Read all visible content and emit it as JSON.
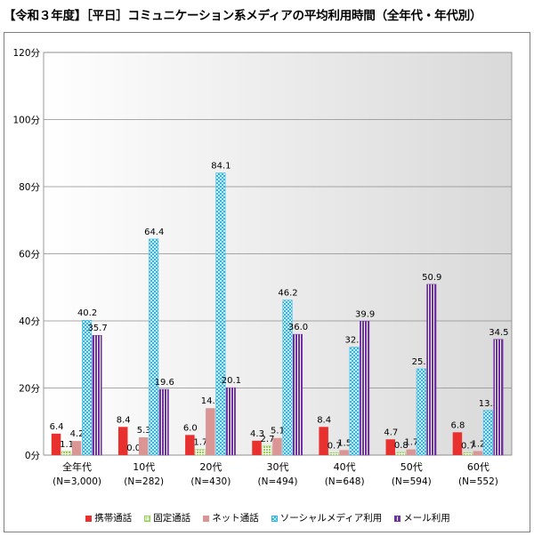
{
  "title": "【令和３年度】［平日］コミュニケーション系メディアの平均利用時間（全年代・年代別）",
  "chart_data": {
    "type": "bar",
    "title": "【令和３年度】［平日］コミュニケーション系メディアの平均利用時間（全年代・年代別）",
    "categories": [
      {
        "name": "全年代",
        "n": "(N=3,000)"
      },
      {
        "name": "10代",
        "n": "(N=282)"
      },
      {
        "name": "20代",
        "n": "(N=430)"
      },
      {
        "name": "30代",
        "n": "(N=494)"
      },
      {
        "name": "40代",
        "n": "(N=648)"
      },
      {
        "name": "50代",
        "n": "(N=594)"
      },
      {
        "name": "60代",
        "n": "(N=552)"
      }
    ],
    "series": [
      {
        "name": "携帯通話",
        "color": "#e8302f",
        "pattern": "solid",
        "values": [
          6.4,
          8.4,
          6.0,
          4.3,
          8.4,
          4.7,
          6.8
        ],
        "labels": [
          "6.4",
          "8.4",
          "6.0",
          "4.3",
          "8.4",
          "4.7",
          "6.8"
        ]
      },
      {
        "name": "固定通話",
        "color": "#92d050",
        "pattern": "dots",
        "values": [
          1.1,
          0.0,
          1.7,
          2.7,
          0.7,
          0.8,
          0.7
        ],
        "labels": [
          "1.1",
          "0.0",
          "1.7",
          "2.7",
          "0.7",
          "0.8",
          "0.7"
        ]
      },
      {
        "name": "ネット通話",
        "color": "#d99694",
        "pattern": "solid",
        "values": [
          4.2,
          5.3,
          14.0,
          5.1,
          1.5,
          1.7,
          1.2
        ],
        "labels": [
          "4.2",
          "5.3",
          "14.0",
          "5.1",
          "1.5",
          "1.7",
          "1.2"
        ]
      },
      {
        "name": "ソーシャルメディア利用",
        "color": "#2bb8e8",
        "pattern": "checker",
        "values": [
          40.2,
          64.4,
          84.1,
          46.2,
          32.2,
          25.7,
          13.3
        ],
        "labels": [
          "40.2",
          "64.4",
          "84.1",
          "46.2",
          "32.2",
          "25.7",
          "13.3"
        ]
      },
      {
        "name": "メール利用",
        "color": "#7030a0",
        "pattern": "stripes",
        "values": [
          35.7,
          19.6,
          20.1,
          36.0,
          39.9,
          50.9,
          34.5
        ],
        "labels": [
          "35.7",
          "19.6",
          "20.1",
          "36.0",
          "39.9",
          "50.9",
          "34.5"
        ]
      }
    ],
    "y_ticks": [
      "0分",
      "20分",
      "40分",
      "60分",
      "80分",
      "100分",
      "120分"
    ],
    "ylim": [
      0,
      120
    ],
    "grid": true,
    "legend_position": "bottom"
  }
}
